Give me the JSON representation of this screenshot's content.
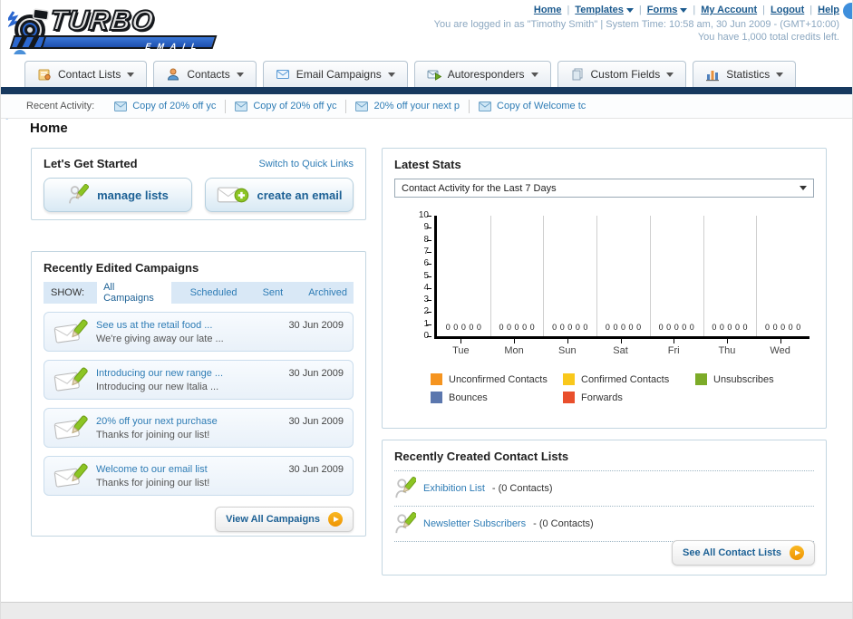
{
  "header": {
    "logo_title": "TURBO",
    "logo_subtitle": "EMAIL",
    "separator": "|",
    "nav_links": [
      {
        "label": "Home"
      },
      {
        "label": "Templates"
      },
      {
        "label": "Forms"
      },
      {
        "label": "My Account"
      },
      {
        "label": "Logout"
      },
      {
        "label": "Help"
      }
    ],
    "login_info": "You are logged in as \"Timothy Smith\" | System Time: 10:58 am, 30 Jun 2009 - (GMT+10:00)",
    "credits_info": "You have 1,000 total credits left."
  },
  "nav_tabs": [
    {
      "label": "Contact Lists"
    },
    {
      "label": "Contacts"
    },
    {
      "label": "Email Campaigns"
    },
    {
      "label": "Autoresponders"
    },
    {
      "label": "Custom Fields"
    },
    {
      "label": "Statistics"
    }
  ],
  "recent_activity": {
    "label": "Recent Activity:",
    "items": [
      {
        "label": "Copy of 20% off yc"
      },
      {
        "label": "Copy of 20% off yc"
      },
      {
        "label": "20% off your next p"
      },
      {
        "label": "Copy of Welcome tc"
      }
    ]
  },
  "page_title": "Home",
  "get_started": {
    "title": "Let's Get Started",
    "switch_link": "Switch to Quick Links",
    "manage_lists_label": "manage lists",
    "create_email_label": "create an email"
  },
  "campaigns": {
    "title": "Recently Edited Campaigns",
    "show_label": "SHOW:",
    "filters": [
      {
        "label": "All Campaigns"
      },
      {
        "label": "Scheduled"
      },
      {
        "label": "Sent"
      },
      {
        "label": "Archived"
      }
    ],
    "active_filter": "All Campaigns",
    "items": [
      {
        "title": "See us at the retail food ...",
        "subtitle": "We're giving away our late ...",
        "date": "30 Jun 2009"
      },
      {
        "title": "Introducing our new range ...",
        "subtitle": "Introducing our new Italia ...",
        "date": "30 Jun 2009"
      },
      {
        "title": "20% off your next purchase",
        "subtitle": "Thanks for joining our list!",
        "date": "30 Jun 2009"
      },
      {
        "title": "Welcome to our email list",
        "subtitle": "Thanks for joining our list!",
        "date": "30 Jun 2009"
      }
    ],
    "view_all_label": "View All Campaigns"
  },
  "latest_stats": {
    "title": "Latest Stats",
    "selected_option": "Contact Activity for the Last 7 Days"
  },
  "chart_data": {
    "type": "bar",
    "title": "Contact Activity for the Last 7 Days",
    "categories": [
      "Tue",
      "Mon",
      "Sun",
      "Sat",
      "Fri",
      "Thu",
      "Wed"
    ],
    "series": [
      {
        "name": "Unconfirmed Contacts",
        "color": "#f5941f",
        "values": [
          0,
          0,
          0,
          0,
          0,
          0,
          0
        ]
      },
      {
        "name": "Confirmed Contacts",
        "color": "#f9c81c",
        "values": [
          0,
          0,
          0,
          0,
          0,
          0,
          0
        ]
      },
      {
        "name": "Unsubscribes",
        "color": "#7cab28",
        "values": [
          0,
          0,
          0,
          0,
          0,
          0,
          0
        ]
      },
      {
        "name": "Bounces",
        "color": "#5b77ae",
        "values": [
          0,
          0,
          0,
          0,
          0,
          0,
          0
        ]
      },
      {
        "name": "Forwards",
        "color": "#e94f2c",
        "values": [
          0,
          0,
          0,
          0,
          0,
          0,
          0
        ]
      }
    ],
    "ylim": [
      0,
      10
    ],
    "ytick_step": 1,
    "grid": "vertical",
    "show_value_labels": true,
    "legend_position": "bottom"
  },
  "contact_lists": {
    "title": "Recently Created Contact Lists",
    "items": [
      {
        "name": "Exhibition List",
        "detail": "- (0 Contacts)"
      },
      {
        "name": "Newsletter Subscribers",
        "detail": "- (0 Contacts)"
      }
    ],
    "see_all_label": "See All Contact Lists"
  }
}
